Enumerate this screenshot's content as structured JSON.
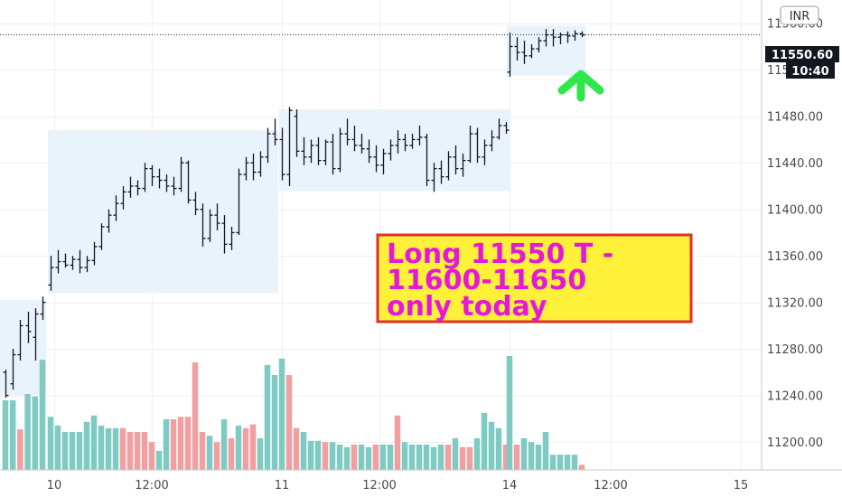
{
  "chart_data": {
    "type": "bar",
    "currency": "INR",
    "last_price": "11550.60",
    "countdown": "10:40",
    "ylim": [
      11176,
      11580
    ],
    "y_ticks": [
      "11560.00",
      "11520.00",
      "11480.00",
      "11440.00",
      "11400.00",
      "11360.00",
      "11320.00",
      "11280.00",
      "11240.00",
      "11200.00"
    ],
    "x_ticks": [
      "10",
      "12:00",
      "11",
      "12:00",
      "14",
      "12:00",
      "15"
    ],
    "annotation": [
      "Long 11550 T -",
      "11600-11650",
      "only today"
    ],
    "colors": {
      "up_volume": "#7fcbc4",
      "down_volume": "#f0a0a0",
      "annotation_bg": "#fff03a",
      "annotation_border": "#e0302a",
      "annotation_text": "#e419d8",
      "arrow": "#2ee84a",
      "range_box": "#e9f3fb"
    },
    "series": [
      {
        "values": [
          [
            11260,
            11262,
            11238,
            11240
          ],
          [
            11250,
            11280,
            11245,
            11275
          ],
          [
            11275,
            11305,
            11270,
            11300
          ],
          [
            11300,
            11312,
            11285,
            11295
          ],
          [
            11290,
            11315,
            11270,
            11310
          ],
          [
            11310,
            11325,
            11305,
            11320
          ],
          [
            11335,
            11360,
            11330,
            11350
          ],
          [
            11350,
            11365,
            11345,
            11355
          ],
          [
            11355,
            11362,
            11350,
            11352
          ],
          [
            11352,
            11360,
            11348,
            11357
          ],
          [
            11357,
            11365,
            11345,
            11350
          ],
          [
            11350,
            11360,
            11346,
            11356
          ],
          [
            11356,
            11372,
            11352,
            11368
          ],
          [
            11368,
            11388,
            11365,
            11385
          ],
          [
            11385,
            11400,
            11380,
            11395
          ],
          [
            11395,
            11412,
            11390,
            11405
          ],
          [
            11405,
            11420,
            11400,
            11415
          ],
          [
            11415,
            11428,
            11410,
            11420
          ],
          [
            11420,
            11425,
            11412,
            11418
          ],
          [
            11418,
            11440,
            11415,
            11435
          ],
          [
            11435,
            11438,
            11420,
            11428
          ],
          [
            11428,
            11435,
            11418,
            11425
          ],
          [
            11425,
            11430,
            11415,
            11420
          ],
          [
            11420,
            11428,
            11412,
            11418
          ],
          [
            11418,
            11445,
            11415,
            11440
          ],
          [
            11440,
            11442,
            11405,
            11408
          ],
          [
            11408,
            11415,
            11395,
            11400
          ],
          [
            11400,
            11405,
            11368,
            11375
          ],
          [
            11375,
            11400,
            11372,
            11395
          ],
          [
            11395,
            11405,
            11382,
            11388
          ],
          [
            11388,
            11395,
            11362,
            11370
          ],
          [
            11370,
            11385,
            11365,
            11380
          ],
          [
            11380,
            11435,
            11378,
            11430
          ],
          [
            11430,
            11445,
            11425,
            11440
          ],
          [
            11440,
            11448,
            11425,
            11432
          ],
          [
            11432,
            11450,
            11428,
            11445
          ],
          [
            11445,
            11470,
            11440,
            11465
          ],
          [
            11465,
            11478,
            11455,
            11460
          ],
          [
            11460,
            11470,
            11425,
            11430
          ],
          [
            11430,
            11488,
            11420,
            11485
          ],
          [
            11480,
            11486,
            11445,
            11450
          ],
          [
            11450,
            11462,
            11438,
            11445
          ],
          [
            11445,
            11460,
            11440,
            11455
          ],
          [
            11455,
            11462,
            11438,
            11442
          ],
          [
            11442,
            11460,
            11438,
            11458
          ],
          [
            11458,
            11465,
            11430,
            11435
          ],
          [
            11435,
            11470,
            11432,
            11465
          ],
          [
            11465,
            11478,
            11455,
            11460
          ],
          [
            11460,
            11472,
            11450,
            11455
          ],
          [
            11455,
            11465,
            11448,
            11452
          ],
          [
            11452,
            11460,
            11440,
            11445
          ],
          [
            11445,
            11455,
            11432,
            11438
          ],
          [
            11438,
            11452,
            11430,
            11448
          ],
          [
            11448,
            11460,
            11442,
            11455
          ],
          [
            11455,
            11468,
            11448,
            11460
          ],
          [
            11460,
            11465,
            11450,
            11455
          ],
          [
            11455,
            11465,
            11452,
            11460
          ],
          [
            11460,
            11472,
            11455,
            11462
          ],
          [
            11462,
            11465,
            11420,
            11425
          ],
          [
            11425,
            11440,
            11415,
            11435
          ],
          [
            11435,
            11442,
            11422,
            11428
          ],
          [
            11428,
            11450,
            11425,
            11445
          ],
          [
            11445,
            11455,
            11430,
            11435
          ],
          [
            11435,
            11448,
            11428,
            11442
          ],
          [
            11442,
            11472,
            11440,
            11465
          ],
          [
            11465,
            11470,
            11440,
            11445
          ],
          [
            11445,
            11460,
            11438,
            11455
          ],
          [
            11455,
            11468,
            11450,
            11462
          ],
          [
            11462,
            11478,
            11460,
            11472
          ],
          [
            11472,
            11475,
            11465,
            11468
          ],
          [
            11518,
            11552,
            11514,
            11540
          ],
          [
            11540,
            11548,
            11528,
            11535
          ],
          [
            11535,
            11545,
            11525,
            11532
          ],
          [
            11532,
            11542,
            11530,
            11538
          ],
          [
            11538,
            11548,
            11535,
            11545
          ],
          [
            11545,
            11555,
            11540,
            11550
          ],
          [
            11550,
            11555,
            11540,
            11548
          ],
          [
            11548,
            11552,
            11542,
            11550
          ],
          [
            11550,
            11553,
            11543,
            11549
          ],
          [
            11549,
            11554,
            11545,
            11551
          ],
          [
            11551,
            11553,
            11548,
            11550
          ]
        ]
      },
      {
        "values": [
          [
            0.55,
            "u"
          ],
          [
            0.55,
            "u"
          ],
          [
            0.32,
            "d"
          ],
          [
            0.6,
            "u"
          ],
          [
            0.58,
            "u"
          ],
          [
            0.87,
            "u"
          ],
          [
            0.42,
            "u"
          ],
          [
            0.35,
            "u"
          ],
          [
            0.3,
            "u"
          ],
          [
            0.3,
            "u"
          ],
          [
            0.3,
            "u"
          ],
          [
            0.38,
            "u"
          ],
          [
            0.43,
            "u"
          ],
          [
            0.35,
            "u"
          ],
          [
            0.33,
            "u"
          ],
          [
            0.33,
            "u"
          ],
          [
            0.33,
            "d"
          ],
          [
            0.3,
            "d"
          ],
          [
            0.3,
            "d"
          ],
          [
            0.3,
            "d"
          ],
          [
            0.22,
            "d"
          ],
          [
            0.15,
            "u"
          ],
          [
            0.4,
            "u"
          ],
          [
            0.4,
            "d"
          ],
          [
            0.42,
            "d"
          ],
          [
            0.42,
            "d"
          ],
          [
            0.85,
            "d"
          ],
          [
            0.3,
            "d"
          ],
          [
            0.27,
            "u"
          ],
          [
            0.22,
            "d"
          ],
          [
            0.4,
            "u"
          ],
          [
            0.25,
            "d"
          ],
          [
            0.35,
            "u"
          ],
          [
            0.33,
            "d"
          ],
          [
            0.36,
            "d"
          ],
          [
            0.25,
            "u"
          ],
          [
            0.83,
            "u"
          ],
          [
            0.75,
            "u"
          ],
          [
            0.88,
            "u"
          ],
          [
            0.75,
            "d"
          ],
          [
            0.33,
            "d"
          ],
          [
            0.3,
            "u"
          ],
          [
            0.23,
            "u"
          ],
          [
            0.23,
            "u"
          ],
          [
            0.22,
            "d"
          ],
          [
            0.22,
            "u"
          ],
          [
            0.2,
            "u"
          ],
          [
            0.18,
            "u"
          ],
          [
            0.2,
            "d"
          ],
          [
            0.2,
            "u"
          ],
          [
            0.18,
            "u"
          ],
          [
            0.2,
            "d"
          ],
          [
            0.2,
            "u"
          ],
          [
            0.2,
            "u"
          ],
          [
            0.43,
            "d"
          ],
          [
            0.22,
            "u"
          ],
          [
            0.2,
            "u"
          ],
          [
            0.2,
            "u"
          ],
          [
            0.2,
            "u"
          ],
          [
            0.18,
            "u"
          ],
          [
            0.2,
            "u"
          ],
          [
            0.2,
            "d"
          ],
          [
            0.25,
            "u"
          ],
          [
            0.18,
            "d"
          ],
          [
            0.18,
            "d"
          ],
          [
            0.25,
            "u"
          ],
          [
            0.45,
            "u"
          ],
          [
            0.38,
            "u"
          ],
          [
            0.33,
            "u"
          ],
          [
            0.2,
            "d"
          ],
          [
            0.9,
            "u"
          ],
          [
            0.2,
            "d"
          ],
          [
            0.25,
            "u"
          ],
          [
            0.22,
            "u"
          ],
          [
            0.2,
            "u"
          ],
          [
            0.3,
            "u"
          ],
          [
            0.12,
            "u"
          ],
          [
            0.12,
            "u"
          ],
          [
            0.12,
            "u"
          ],
          [
            0.12,
            "u"
          ],
          [
            0.04,
            "d"
          ]
        ]
      }
    ],
    "grid": true
  }
}
